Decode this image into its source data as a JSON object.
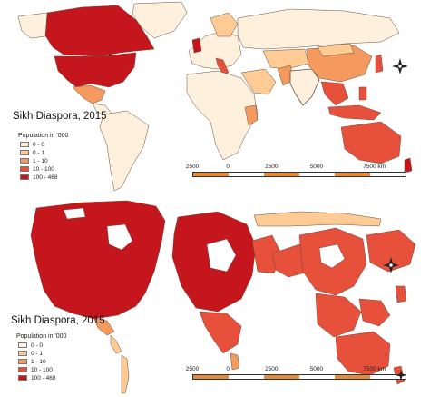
{
  "colors": {
    "c0": "#fdf0dc",
    "c1": "#fdcb93",
    "c2": "#f59a5e",
    "c3": "#e7503a",
    "c4": "#c4161c",
    "border": "#6b4b3a",
    "scale_orange": "#e58a3a",
    "scale_white": "#ffffff"
  },
  "maps": [
    {
      "title": "Sikh Diaspora, 2015",
      "legend_title": "Population in '000",
      "legend": [
        {
          "label": "0 - 0",
          "color": "#fdf0dc"
        },
        {
          "label": "0 - 1",
          "color": "#fdcb93"
        },
        {
          "label": "1 - 10",
          "color": "#f59a5e"
        },
        {
          "label": "10 - 100",
          "color": "#e7503a"
        },
        {
          "label": "100 - 468",
          "color": "#c4161c"
        }
      ],
      "scale_labels": [
        "2500",
        "0",
        "2500",
        "5000",
        "7500 km"
      ]
    },
    {
      "title": "Sikh Diaspora, 2015",
      "legend_title": "Population in '000",
      "legend": [
        {
          "label": "0 - 0",
          "color": "#fdf0dc"
        },
        {
          "label": "0 - 1",
          "color": "#fdcb93"
        },
        {
          "label": "1 - 10",
          "color": "#f59a5e"
        },
        {
          "label": "10 - 100",
          "color": "#e7503a"
        },
        {
          "label": "100 - 468",
          "color": "#c4161c"
        }
      ],
      "scale_labels": [
        "2500",
        "0",
        "2500",
        "5000",
        "7500 km"
      ]
    }
  ]
}
